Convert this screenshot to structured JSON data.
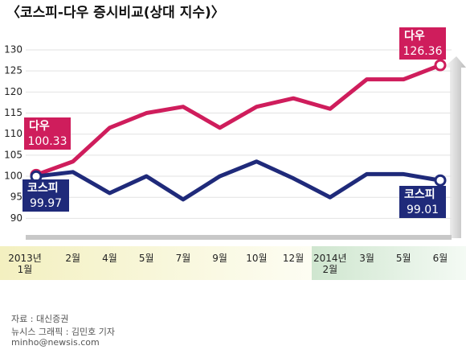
{
  "chart_data": {
    "type": "line",
    "title": "〈코스피-다우 증시비교(상대 지수)〉",
    "categories": [
      "2013년 1월",
      "2월",
      "4월",
      "5월",
      "7월",
      "9월",
      "10월",
      "12월",
      "2014년 2월",
      "3월",
      "5월",
      "6월"
    ],
    "series": [
      {
        "name": "다우",
        "color": "#cf1d5c",
        "values": [
          100.33,
          103.5,
          111.5,
          115,
          116.5,
          111.5,
          116.5,
          118.5,
          116,
          123,
          123,
          126.36
        ]
      },
      {
        "name": "코스피",
        "color": "#1f2a7a",
        "values": [
          99.97,
          101,
          96,
          100,
          94.5,
          100,
          103.5,
          99.5,
          95,
          100.5,
          100.5,
          99.01
        ]
      }
    ],
    "ylim": [
      85.3,
      134.2
    ],
    "yticks": [
      90,
      95,
      100,
      105,
      110,
      115,
      120,
      125,
      130
    ],
    "grid": true,
    "source": "자료 : 대신증권",
    "credit": "뉴시스 그래픽 : 김민호 기자",
    "email": "minho@newsis.com"
  }
}
